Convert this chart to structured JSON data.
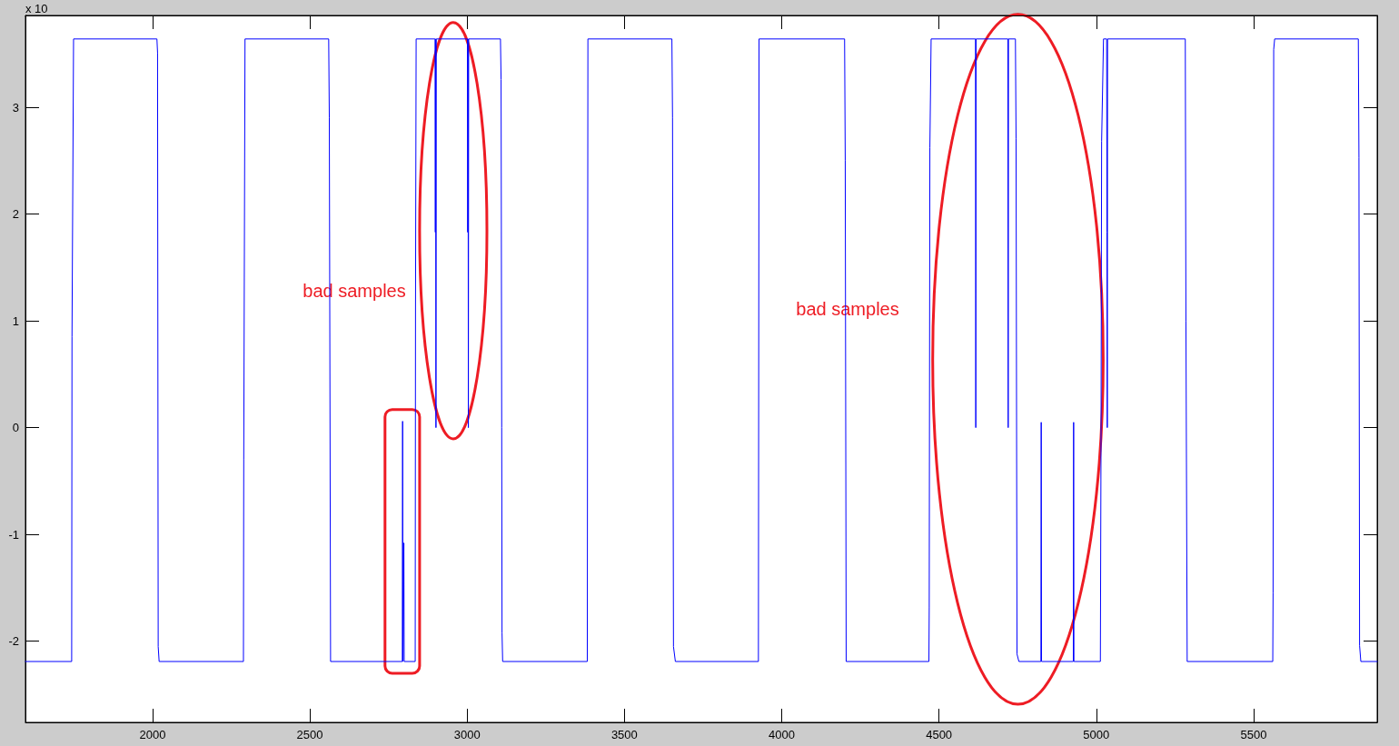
{
  "chart_data": {
    "type": "line",
    "color": "#0000ff",
    "x": [
      1596,
      1743,
      1744,
      1749,
      2014,
      2016,
      2018,
      2021,
      2289,
      2290,
      2294,
      2560,
      2562,
      2566,
      2794,
      2795,
      2796,
      2798,
      2799,
      2800,
      2835,
      2836,
      2838,
      2898,
      2899,
      2900,
      2901,
      2902,
      3001,
      3002,
      3003,
      3004,
      3005,
      3106,
      3108,
      3110,
      3111,
      3113,
      3382,
      3384,
      3651,
      3653,
      3656,
      3662,
      3926,
      3928,
      4200,
      4202,
      4205,
      4468,
      4469,
      4471,
      4475,
      4616,
      4617,
      4618,
      4719,
      4720,
      4721,
      4743,
      4745,
      4748,
      4754,
      4824,
      4825,
      4826,
      4927,
      4928,
      4929,
      5013,
      5015,
      5017,
      5023,
      5033,
      5034,
      5035,
      5036,
      5283,
      5285,
      5289,
      5561,
      5562,
      5564,
      5567,
      5833,
      5835,
      5837,
      5841,
      5893
    ],
    "values": [
      -2.19,
      -2.19,
      0.85,
      3.64,
      3.64,
      3.51,
      -2.05,
      -2.19,
      -2.19,
      -0.3,
      3.64,
      3.64,
      2.9,
      -2.19,
      -2.19,
      0.06,
      -2.19,
      -2.19,
      -1.08,
      -2.19,
      -2.19,
      1.12,
      3.64,
      3.64,
      1.83,
      3.64,
      0.0,
      3.64,
      3.64,
      1.83,
      3.64,
      0.0,
      3.64,
      3.64,
      3.26,
      0.0,
      -1.92,
      -2.19,
      -2.19,
      3.64,
      3.64,
      2.9,
      -2.05,
      -2.19,
      -2.19,
      3.64,
      3.64,
      2.5,
      -2.19,
      -2.19,
      -1.68,
      2.62,
      3.64,
      3.64,
      0.0,
      3.64,
      3.64,
      0.0,
      3.64,
      3.64,
      2.71,
      -2.12,
      -2.19,
      -2.19,
      0.05,
      -2.19,
      -2.19,
      0.05,
      -2.19,
      -2.19,
      -0.24,
      2.68,
      3.64,
      3.64,
      1.83,
      0.0,
      3.64,
      3.64,
      1.0,
      -2.19,
      -2.19,
      -1.55,
      3.54,
      3.64,
      3.64,
      2.53,
      -2.04,
      -2.19,
      -2.19
    ],
    "xlim": [
      1596,
      5893
    ],
    "ylim": [
      -2.76,
      3.86
    ],
    "xticks": [
      2000,
      2500,
      3000,
      3500,
      4000,
      4500,
      5000,
      5500
    ],
    "yticks": [
      -2,
      -1,
      0,
      1,
      2,
      3
    ],
    "annotations": [
      "x 10",
      "bad samples",
      "bad samples"
    ]
  }
}
